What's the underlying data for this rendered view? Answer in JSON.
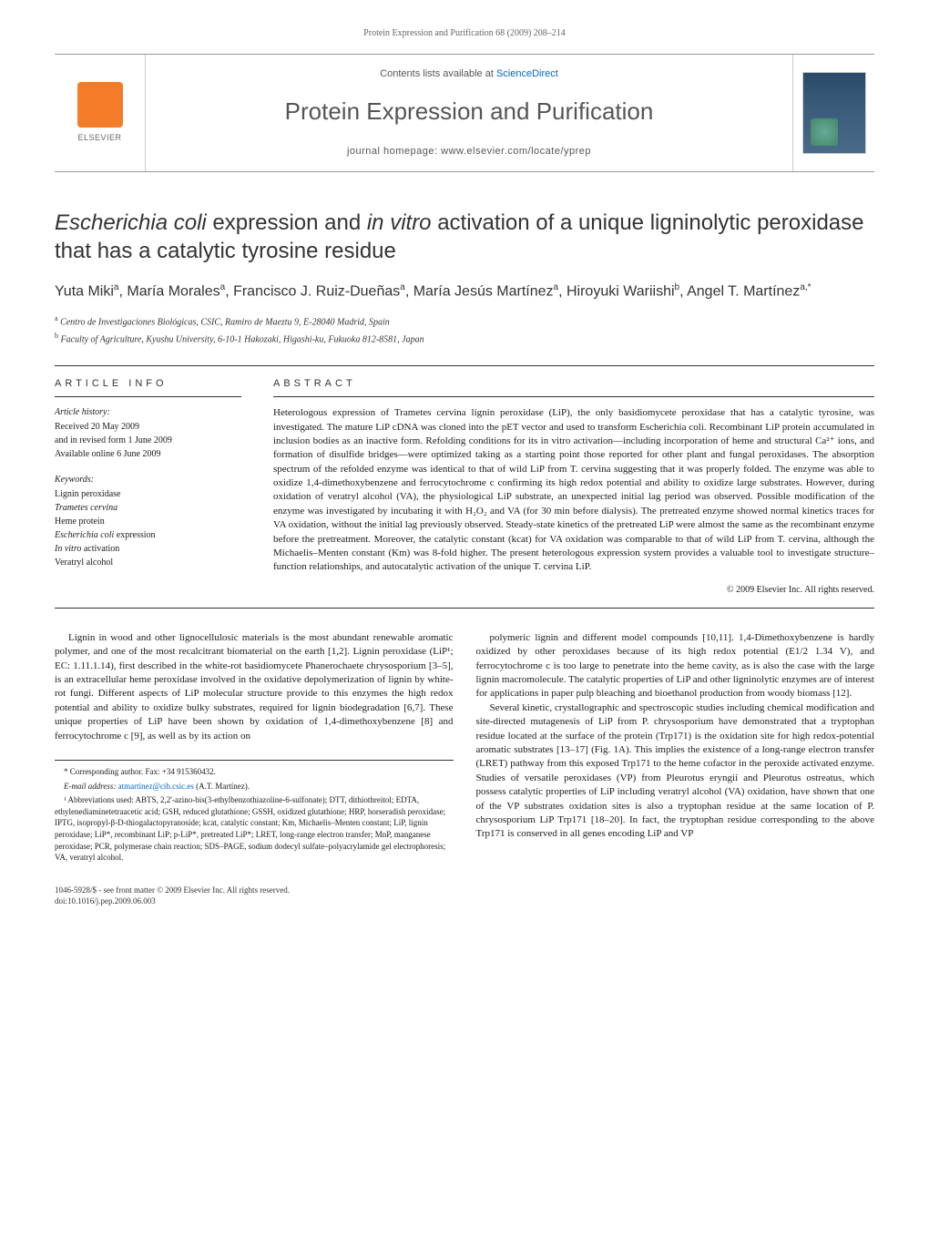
{
  "header": {
    "running": "Protein Expression and Purification 68 (2009) 208–214"
  },
  "masthead": {
    "contents_prefix": "Contents lists available at ",
    "contents_link": "ScienceDirect",
    "journal": "Protein Expression and Purification",
    "homepage": "journal homepage: www.elsevier.com/locate/yprep",
    "publisher": "ELSEVIER"
  },
  "title_parts": {
    "p1": "Escherichia coli",
    "p2": " expression and ",
    "p3": "in vitro",
    "p4": " activation of a unique ligninolytic peroxidase that has a catalytic tyrosine residue"
  },
  "authors": {
    "a1": "Yuta Miki",
    "s1": "a",
    "a2": "María Morales",
    "s2": "a",
    "a3": "Francisco J. Ruiz-Dueñas",
    "s3": "a",
    "a4": "María Jesús Martínez",
    "s4": "a",
    "a5": "Hiroyuki Wariishi",
    "s5": "b",
    "a6": "Angel T. Martínez",
    "s6": "a,*"
  },
  "affiliations": {
    "a": "Centro de Investigaciones Biológicas, CSIC, Ramiro de Maeztu 9, E-28040 Madrid, Spain",
    "b": "Faculty of Agriculture, Kyushu University, 6-10-1 Hakozaki, Higashi-ku, Fukuoka 812-8581, Japan"
  },
  "article_info": {
    "heading": "ARTICLE INFO",
    "history_label": "Article history:",
    "history": {
      "received": "Received 20 May 2009",
      "revised": "and in revised form 1 June 2009",
      "online": "Available online 6 June 2009"
    },
    "keywords_label": "Keywords:",
    "keywords": [
      "Lignin peroxidase",
      "Trametes cervina",
      "Heme protein",
      "Escherichia coli expression",
      "In vitro activation",
      "Veratryl alcohol"
    ],
    "italic_idx": {
      "1": true,
      "3_prefix": true,
      "4_prefix": true
    }
  },
  "abstract": {
    "heading": "ABSTRACT",
    "text": "Heterologous expression of Trametes cervina lignin peroxidase (LiP), the only basidiomycete peroxidase that has a catalytic tyrosine, was investigated. The mature LiP cDNA was cloned into the pET vector and used to transform Escherichia coli. Recombinant LiP protein accumulated in inclusion bodies as an inactive form. Refolding conditions for its in vitro activation—including incorporation of heme and structural Ca²⁺ ions, and formation of disulfide bridges—were optimized taking as a starting point those reported for other plant and fungal peroxidases. The absorption spectrum of the refolded enzyme was identical to that of wild LiP from T. cervina suggesting that it was properly folded. The enzyme was able to oxidize 1,4-dimethoxybenzene and ferrocytochrome c confirming its high redox potential and ability to oxidize large substrates. However, during oxidation of veratryl alcohol (VA), the physiological LiP substrate, an unexpected initial lag period was observed. Possible modification of the enzyme was investigated by incubating it with H₂O₂ and VA (for 30 min before dialysis). The pretreated enzyme showed normal kinetics traces for VA oxidation, without the initial lag previously observed. Steady-state kinetics of the pretreated LiP were almost the same as the recombinant enzyme before the pretreatment. Moreover, the catalytic constant (kcat) for VA oxidation was comparable to that of wild LiP from T. cervina, although the Michaelis–Menten constant (Km) was 8-fold higher. The present heterologous expression system provides a valuable tool to investigate structure–function relationships, and autocatalytic activation of the unique T. cervina LiP.",
    "copyright": "© 2009 Elsevier Inc. All rights reserved."
  },
  "body": {
    "left": [
      "Lignin in wood and other lignocellulosic materials is the most abundant renewable aromatic polymer, and one of the most recalcitrant biomaterial on the earth [1,2]. Lignin peroxidase (LiP¹; EC: 1.11.1.14), first described in the white-rot basidiomycete Phanerochaete chrysosporium [3–5], is an extracellular heme peroxidase involved in the oxidative depolymerization of lignin by white-rot fungi. Different aspects of LiP molecular structure provide to this enzymes the high redox potential and ability to oxidize bulky substrates, required for lignin biodegradation [6,7]. These unique properties of LiP have been shown by oxidation of 1,4-dimethoxybenzene [8] and ferrocytochrome c [9], as well as by its action on"
    ],
    "right": [
      "polymeric lignin and different model compounds [10,11]. 1,4-Dimethoxybenzene is hardly oxidized by other peroxidases because of its high redox potential (E1/2 1.34 V), and ferrocytochrome c is too large to penetrate into the heme cavity, as is also the case with the large lignin macromolecule. The catalytic properties of LiP and other ligninolytic enzymes are of interest for applications in paper pulp bleaching and bioethanol production from woody biomass [12].",
      "Several kinetic, crystallographic and spectroscopic studies including chemical modification and site-directed mutagenesis of LiP from P. chrysosporium have demonstrated that a tryptophan residue located at the surface of the protein (Trp171) is the oxidation site for high redox-potential aromatic substrates [13–17] (Fig. 1A). This implies the existence of a long-range electron transfer (LRET) pathway from this exposed Trp171 to the heme cofactor in the peroxide activated enzyme. Studies of versatile peroxidases (VP) from Pleurotus eryngii and Pleurotus ostreatus, which possess catalytic properties of LiP including veratryl alcohol (VA) oxidation, have shown that one of the VP substrates oxidation sites is also a tryptophan residue at the same location of P. chrysosporium LiP Trp171 [18–20]. In fact, the tryptophan residue corresponding to the above Trp171 is conserved in all genes encoding LiP and VP"
    ]
  },
  "footnotes": {
    "corresponding": "* Corresponding author. Fax: +34 915360432.",
    "email_label": "E-mail address: ",
    "email": "atmartinez@cib.csic.es",
    "email_suffix": " (A.T. Martínez).",
    "abbrev": "¹ Abbreviations used: ABTS, 2,2'-azino-bis(3-ethylbenzothiazoline-6-sulfonate); DTT, dithiothreitol; EDTA, ethylenediaminetetraacetic acid; GSH, reduced glutathione; GSSH, oxidized glutathione; HRP, horseradish peroxidase; IPTG, isopropyl-β-D-thiogalactopyranoside; kcat, catalytic constant; Km, Michaelis–Menten constant; LiP, lignin peroxidase; LiP*, recombinant LiP; p-LiP*, pretreated LiP*; LRET, long-range electron transfer; MnP, manganese peroxidase; PCR, polymerase chain reaction; SDS–PAGE, sodium dodecyl sulfate–polyacrylamide gel electrophoresis; VA, veratryl alcohol."
  },
  "footer": {
    "line1": "1046-5928/$ - see front matter © 2009 Elsevier Inc. All rights reserved.",
    "line2": "doi:10.1016/j.pep.2009.06.003"
  },
  "colors": {
    "link": "#0066cc",
    "text": "#1a1a1a",
    "muted": "#666666",
    "rule": "#333333",
    "elsevier": "#f47c26"
  }
}
